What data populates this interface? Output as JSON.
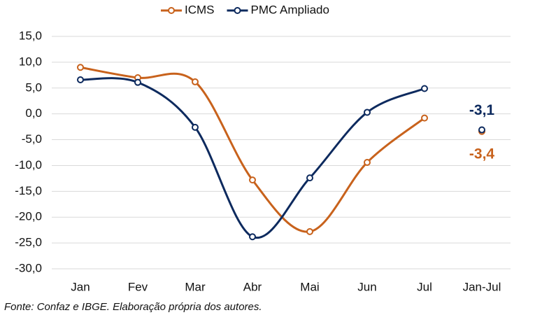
{
  "chart_data": {
    "type": "line",
    "categories": [
      "Jan",
      "Fev",
      "Mar",
      "Abr",
      "Mai",
      "Jun",
      "Jul",
      "Jan-Jul"
    ],
    "series": [
      {
        "name": "ICMS",
        "color": "#c8621c",
        "values": [
          9.0,
          7.0,
          6.2,
          -12.8,
          -22.8,
          -9.4,
          -0.8,
          -3.4
        ],
        "value_labels": [
          null,
          null,
          null,
          null,
          null,
          null,
          null,
          "-3,4"
        ]
      },
      {
        "name": "PMC Ampliado",
        "color": "#0d2a5e",
        "values": [
          6.6,
          6.1,
          -2.6,
          -23.8,
          -12.4,
          0.3,
          4.9,
          -3.1
        ],
        "value_labels": [
          null,
          null,
          null,
          null,
          null,
          null,
          null,
          "-3,1"
        ]
      }
    ],
    "ylim": [
      -30,
      15
    ],
    "yticks": [
      {
        "value": -30,
        "label": "-30,0"
      },
      {
        "value": -25,
        "label": "-25,0"
      },
      {
        "value": -20,
        "label": "-20,0"
      },
      {
        "value": -15,
        "label": "-15,0"
      },
      {
        "value": -10,
        "label": "-10,0"
      },
      {
        "value": -5,
        "label": "-5,0"
      },
      {
        "value": 0,
        "label": "0,0"
      },
      {
        "value": 5,
        "label": "5,0"
      },
      {
        "value": 10,
        "label": "10,0"
      },
      {
        "value": 15,
        "label": "15,0"
      }
    ],
    "grid": true,
    "legend": "top",
    "source": "Fonte: Confaz e IBGE. Elaboração própria dos autores."
  }
}
